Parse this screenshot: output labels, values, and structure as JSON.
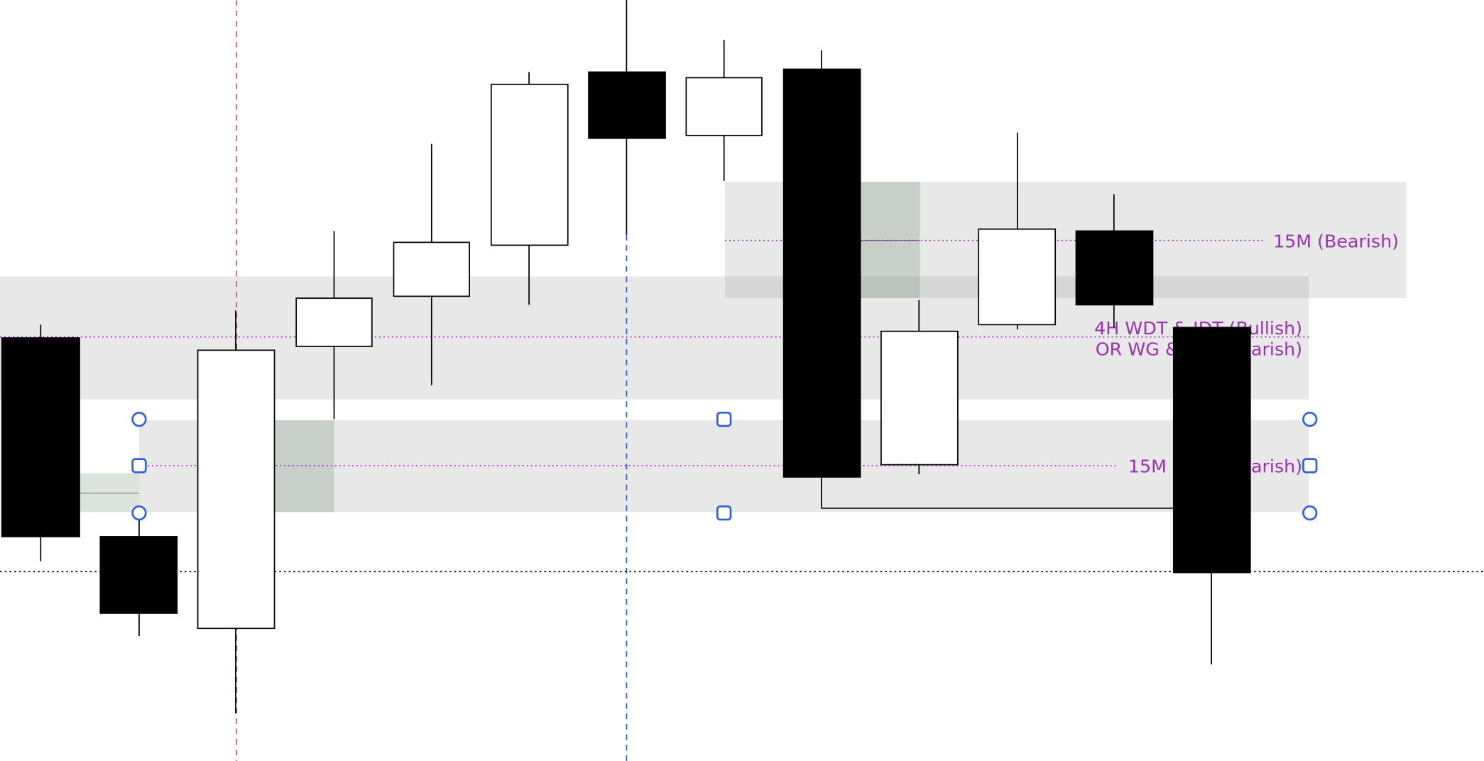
{
  "annotations": [
    {
      "label": "15M (Bearish)"
    },
    {
      "label": "4H WDT & IDT (Bullish)"
    },
    {
      "label": "OR WG & IDT (Bearish)"
    },
    {
      "label": "15M WG I (Bearish)"
    }
  ]
}
